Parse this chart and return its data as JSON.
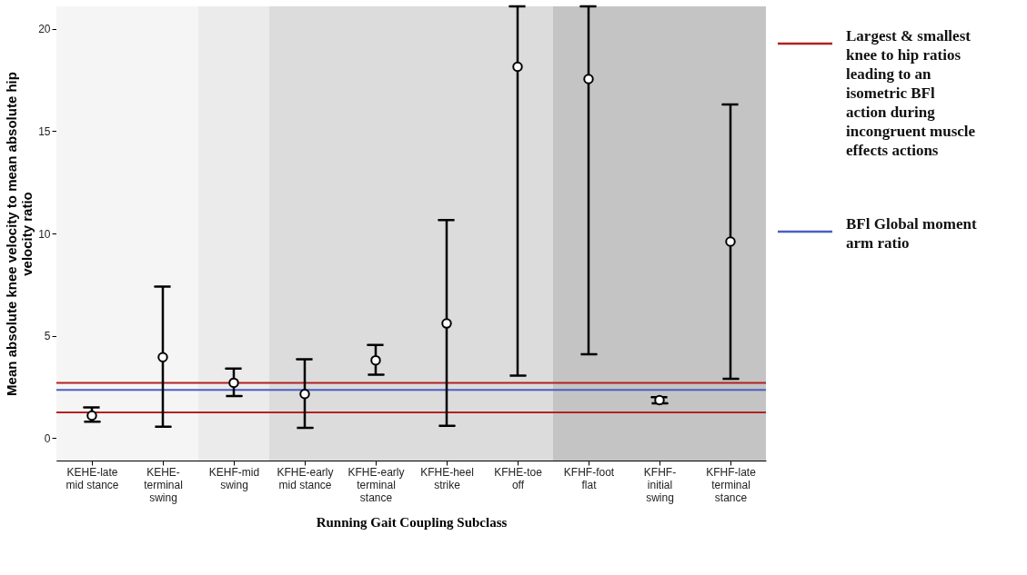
{
  "chart_data": {
    "type": "scatter",
    "xlabel": "Running Gait Coupling Subclass",
    "ylabel": "Mean absolute knee velocity to mean absolute hip velocity ratio",
    "categories": [
      "KEHE-late mid stance",
      "KEHE-terminal swing",
      "KEHF-mid swing",
      "KFHE-early mid stance",
      "KFHE-early terminal stance",
      "KFHE-heel strike",
      "KFHE-toe off",
      "KFHF-foot flat",
      "KFHF-initial swing",
      "KFHF-late terminal stance"
    ],
    "series": [
      {
        "color": "#000000",
        "values": [
          1.1,
          3.95,
          2.7,
          2.15,
          3.8,
          5.6,
          18.15,
          17.55,
          1.85,
          9.6
        ],
        "errors": [
          [
            0.8,
            1.5
          ],
          [
            0.55,
            7.4
          ],
          [
            2.05,
            3.4
          ],
          [
            0.5,
            3.85
          ],
          [
            3.1,
            4.55
          ],
          [
            0.6,
            10.65
          ],
          [
            3.05,
            21.1
          ],
          [
            4.1,
            21.1
          ],
          [
            1.7,
            2.0
          ],
          [
            2.9,
            16.3
          ]
        ]
      }
    ],
    "marker": "circle",
    "ylim": [
      -1.1,
      21.1
    ],
    "yticks": [
      0,
      5,
      10,
      15,
      20
    ],
    "grid": false,
    "legend": "right",
    "ref_lines": [
      {
        "axis": "y",
        "value": 2.7,
        "label": "Largest & smallest knee to hip ratios leading to an isometric BFl action during incongruent muscle effects actions",
        "color": "#b22222"
      },
      {
        "axis": "y",
        "value": 1.25,
        "color": "#b22222"
      },
      {
        "axis": "y",
        "value": 2.35,
        "label": "BFl Global moment arm ratio",
        "color": "#4a5fc1"
      }
    ],
    "bands": [
      {
        "axis": "x",
        "from": "KEHE-late mid stance",
        "to": "KEHE-terminal swing",
        "color": "#f5f5f5"
      },
      {
        "axis": "x",
        "from": "KEHF-mid swing",
        "to": "KEHF-mid swing",
        "color": "#ebebeb"
      },
      {
        "axis": "x",
        "from": "KFHE-early mid stance",
        "to": "KFHE-toe off",
        "color": "#dcdcdc"
      },
      {
        "axis": "x",
        "from": "KFHF-foot flat",
        "to": "KFHF-late terminal stance",
        "color": "#c4c4c4"
      }
    ]
  }
}
